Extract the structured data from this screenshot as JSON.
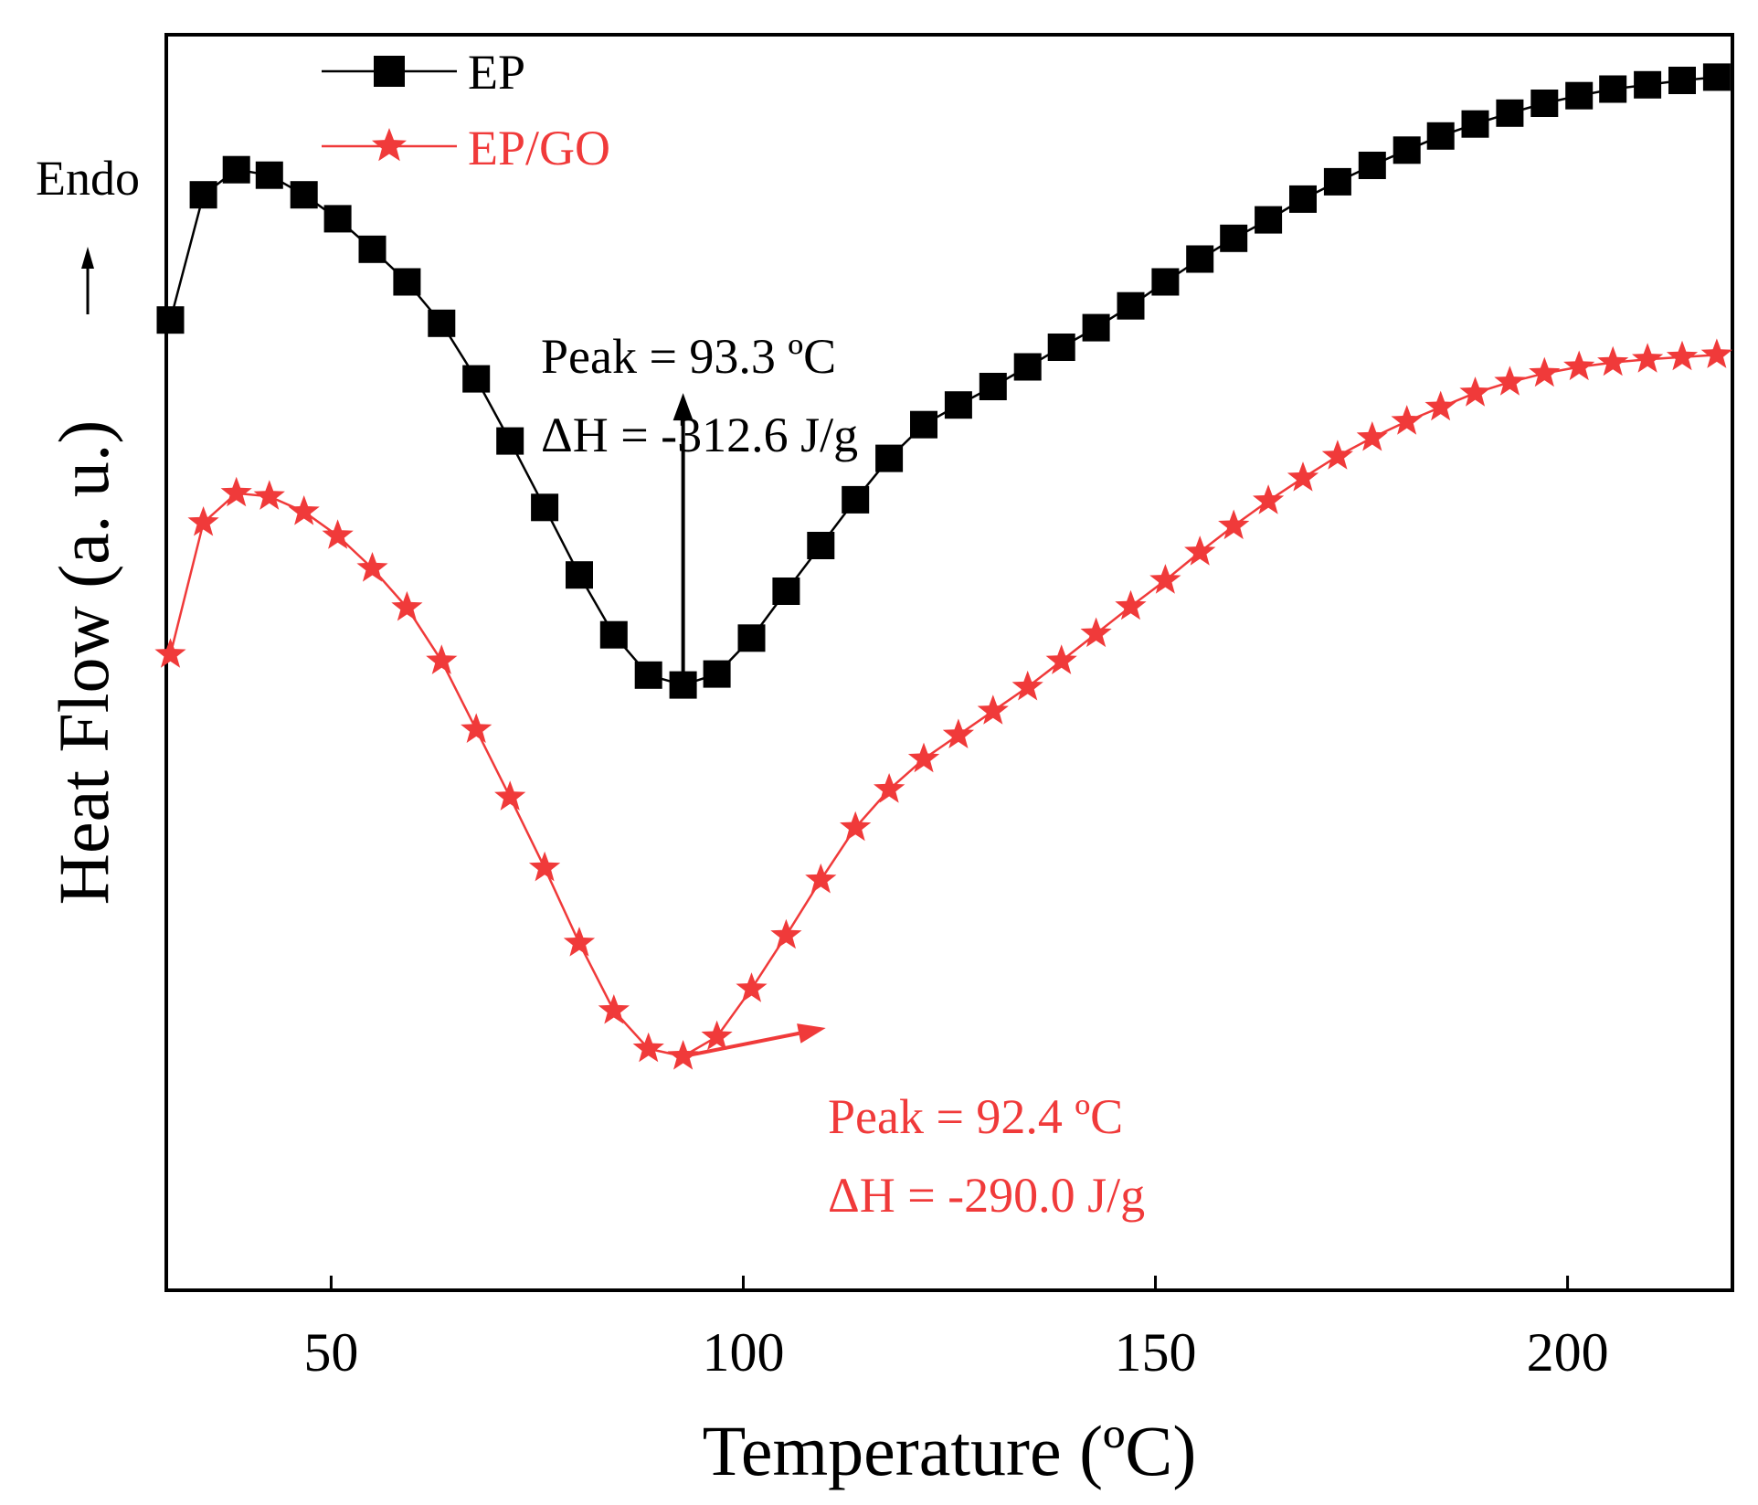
{
  "chart_data": {
    "type": "line",
    "xlabel": "Temperature (ºC)",
    "ylabel": "Heat Flow (a. u.)",
    "xlim": [
      30,
      220
    ],
    "ylim": [
      0,
      100
    ],
    "xticks": [
      50,
      100,
      150,
      200
    ],
    "yticks": [],
    "grid": false,
    "legend_position": "top-left",
    "side_note": {
      "text": "Endo",
      "arrow": "up-arrow-icon"
    },
    "series": [
      {
        "name": "EP",
        "color": "#000000",
        "marker": "square",
        "x": [
          30.5,
          34.5,
          38.5,
          42.5,
          46.7,
          50.8,
          55.0,
          59.2,
          63.4,
          67.6,
          71.7,
          75.9,
          80.1,
          84.3,
          88.5,
          92.7,
          96.8,
          101.0,
          105.2,
          109.4,
          113.6,
          117.7,
          121.9,
          126.1,
          130.3,
          134.5,
          138.6,
          142.8,
          147.0,
          151.2,
          155.4,
          159.5,
          163.7,
          167.9,
          172.1,
          176.3,
          180.5,
          184.6,
          188.8,
          193.0,
          197.2,
          201.4,
          205.5,
          209.7,
          213.9,
          218.1
        ],
        "y": [
          78.0,
          89.5,
          91.8,
          91.3,
          89.5,
          87.3,
          84.5,
          81.5,
          77.7,
          72.6,
          66.9,
          60.8,
          54.6,
          49.1,
          45.4,
          44.5,
          45.5,
          48.8,
          53.1,
          57.3,
          61.5,
          65.3,
          68.4,
          70.2,
          71.9,
          73.7,
          75.5,
          77.3,
          79.3,
          81.5,
          83.6,
          85.5,
          87.2,
          89.1,
          90.7,
          92.2,
          93.6,
          94.9,
          96.0,
          97.0,
          97.9,
          98.6,
          99.2,
          99.6,
          100.0,
          100.3
        ]
      },
      {
        "name": "EP/GO",
        "color": "#f03a3a",
        "marker": "star",
        "x": [
          30.5,
          34.5,
          38.5,
          42.5,
          46.7,
          50.8,
          55.0,
          59.2,
          63.4,
          67.6,
          71.7,
          75.9,
          80.1,
          84.3,
          88.5,
          92.7,
          96.8,
          101.0,
          105.2,
          109.4,
          113.6,
          117.7,
          121.9,
          126.1,
          130.3,
          134.5,
          138.6,
          142.8,
          147.0,
          151.2,
          155.4,
          159.5,
          163.7,
          167.9,
          172.1,
          176.3,
          180.5,
          184.6,
          188.8,
          193.0,
          197.2,
          201.4,
          205.5,
          209.7,
          213.9,
          218.1
        ],
        "y": [
          47.3,
          59.4,
          62.1,
          61.8,
          60.4,
          58.2,
          55.2,
          51.6,
          46.7,
          40.4,
          34.2,
          27.7,
          20.8,
          14.6,
          11.1,
          10.4,
          12.2,
          16.6,
          21.5,
          26.6,
          31.4,
          34.9,
          37.7,
          39.9,
          42.1,
          44.3,
          46.7,
          49.2,
          51.7,
          54.1,
          56.7,
          59.1,
          61.4,
          63.5,
          65.5,
          67.2,
          68.7,
          70.0,
          71.3,
          72.3,
          73.1,
          73.7,
          74.1,
          74.4,
          74.6,
          74.8
        ]
      }
    ],
    "annotations": [
      {
        "text": "Peak = 93.3 ºC",
        "color": "#000000",
        "series": "EP"
      },
      {
        "text": "ΔH = -312.6 J/g",
        "color": "#000000",
        "series": "EP"
      },
      {
        "text": "Peak = 92.4 ºC",
        "color": "#f03a3a",
        "series": "EP/GO"
      },
      {
        "text": "ΔH = -290.0 J/g",
        "color": "#f03a3a",
        "series": "EP/GO"
      }
    ],
    "arrows": [
      {
        "name": "ep-peak-arrow",
        "color": "#000000",
        "from": [
          92.7,
          44.5
        ],
        "to": [
          92.7,
          71.3
        ]
      },
      {
        "name": "epgo-peak-arrow",
        "color": "#f03a3a",
        "from": [
          92.7,
          10.4
        ],
        "to": [
          110.0,
          13.0
        ]
      }
    ]
  }
}
